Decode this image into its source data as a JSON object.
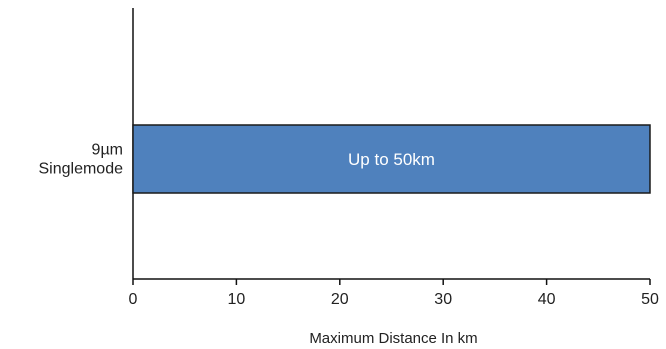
{
  "chart_data": {
    "type": "bar",
    "orientation": "horizontal",
    "categories": [
      [
        "9µm",
        "Singlemode"
      ]
    ],
    "values": [
      50
    ],
    "data_labels": [
      "Up to 50km"
    ],
    "xlabel": "Maximum Distance In km",
    "ylabel": "",
    "xlim": [
      0,
      50
    ],
    "xticks": [
      0,
      10,
      20,
      30,
      40,
      50
    ],
    "bar_color": "#4f81bd",
    "bar_edge_color": "#1a1a1a",
    "grid": false,
    "legend": "none"
  }
}
